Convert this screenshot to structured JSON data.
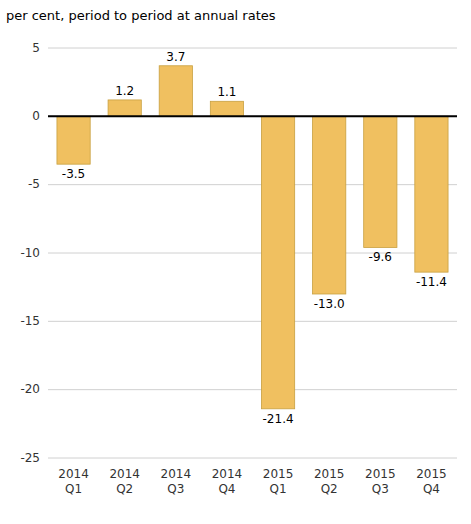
{
  "chart_data": {
    "type": "bar",
    "ylabel": "per cent, period to period at annual rates",
    "categories": [
      "2014\nQ1",
      "2014\nQ2",
      "2014\nQ3",
      "2014\nQ4",
      "2015\nQ1",
      "2015\nQ2",
      "2015\nQ3",
      "2015\nQ4"
    ],
    "values": [
      -3.5,
      1.2,
      3.7,
      1.1,
      -21.4,
      -13.0,
      -9.6,
      -11.4
    ],
    "value_labels": [
      "-3.5",
      "1.2",
      "3.7",
      "1.1",
      "-21.4",
      "-13.0",
      "-9.6",
      "-11.4"
    ],
    "data_labels": true,
    "color": "#F0C060",
    "ylim": [
      -25,
      5
    ],
    "yticks": [
      5,
      0,
      -5,
      -10,
      -15,
      -20,
      -25
    ],
    "grid": true
  }
}
